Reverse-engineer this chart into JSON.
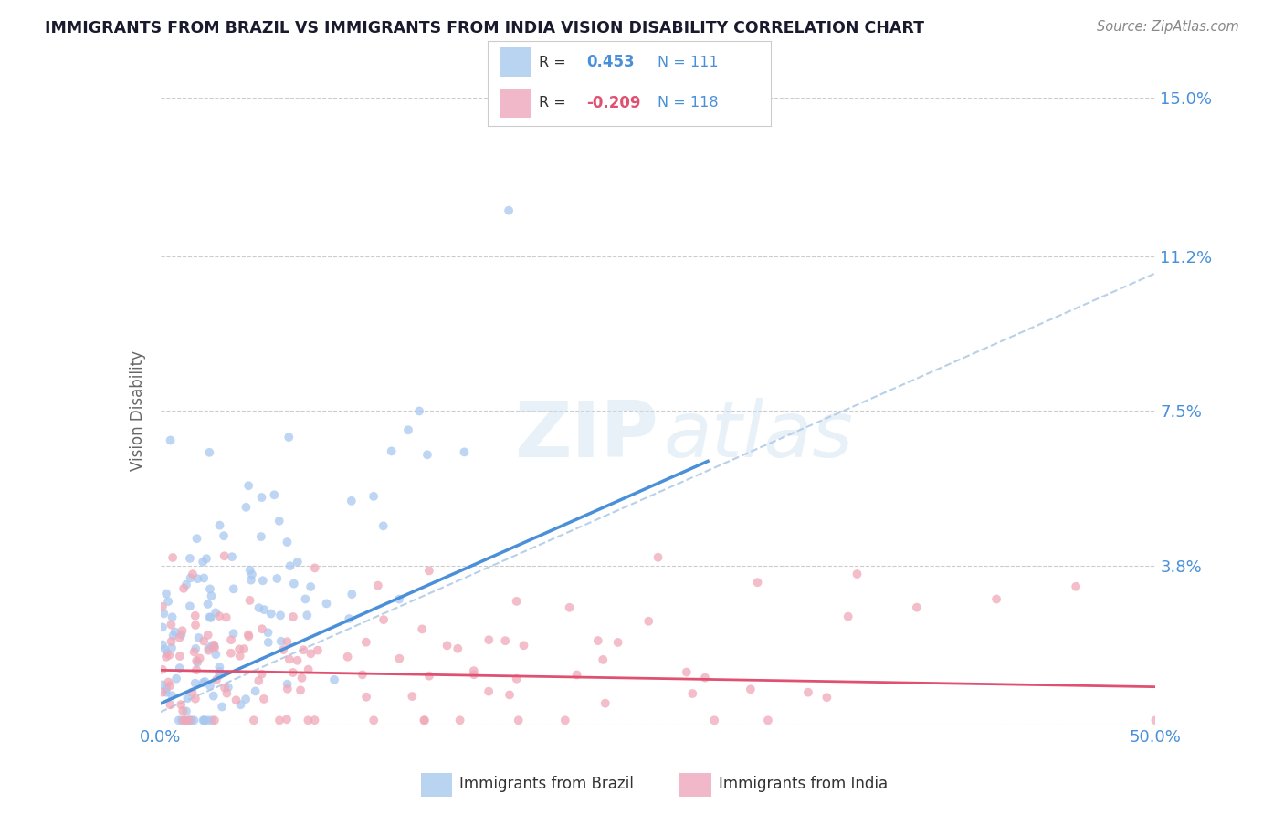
{
  "title": "IMMIGRANTS FROM BRAZIL VS IMMIGRANTS FROM INDIA VISION DISABILITY CORRELATION CHART",
  "source_text": "Source: ZipAtlas.com",
  "ylabel": "Vision Disability",
  "xlim": [
    0.0,
    0.5
  ],
  "ylim": [
    0.0,
    0.15
  ],
  "ytick_vals": [
    0.0,
    0.038,
    0.075,
    0.112,
    0.15
  ],
  "ytick_labels": [
    "",
    "3.8%",
    "7.5%",
    "11.2%",
    "15.0%"
  ],
  "xtick_vals": [
    0.0,
    0.5
  ],
  "xtick_labels": [
    "0.0%",
    "50.0%"
  ],
  "brazil_R": 0.453,
  "brazil_N": 111,
  "india_R": -0.209,
  "india_N": 118,
  "brazil_color": "#a8c8f0",
  "india_color": "#f0a8b8",
  "brazil_line_color": "#4a90d9",
  "india_line_color": "#e05070",
  "trendline_dashed_color": "#b8d0e8",
  "scatter_alpha": 0.75,
  "background_color": "#ffffff",
  "grid_color": "#cccccc",
  "title_color": "#1a1a2e",
  "axis_label_color": "#4a90d9",
  "legend_box_color_brazil": "#b8d4f0",
  "legend_box_color_india": "#f0b8c8",
  "brazil_line_x": [
    0.0,
    0.275
  ],
  "brazil_line_y": [
    0.005,
    0.063
  ],
  "india_line_x": [
    0.0,
    0.5
  ],
  "india_line_y": [
    0.013,
    0.009
  ],
  "dashed_line_x": [
    0.0,
    0.5
  ],
  "dashed_line_y": [
    0.003,
    0.108
  ]
}
